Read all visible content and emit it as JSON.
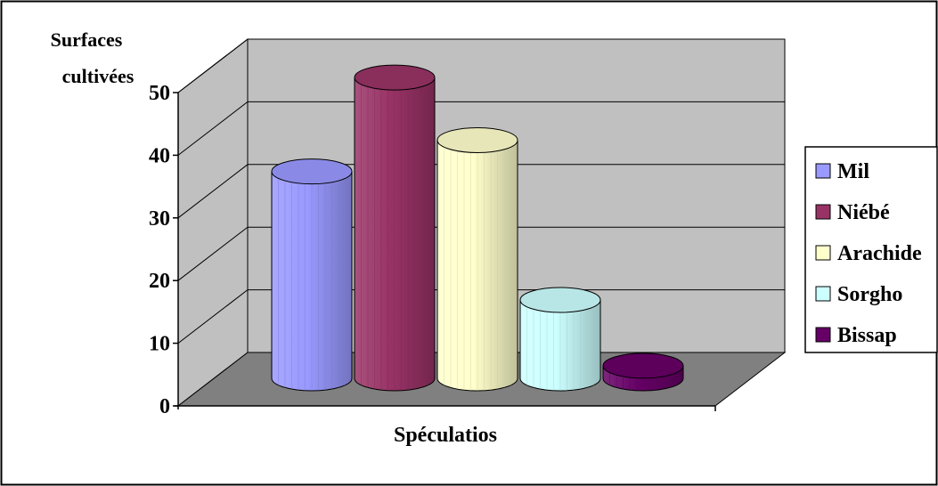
{
  "chart_data": {
    "type": "bar",
    "style": "3d-cylinder",
    "title": "",
    "xlabel": "Spéculatios",
    "ylabel": "Surfaces cultivées",
    "ylabel_lines": [
      "Surfaces",
      "cultivées"
    ],
    "ylim": [
      0,
      50
    ],
    "yticks": [
      "0",
      "10",
      "20",
      "30",
      "40",
      "50"
    ],
    "grid": true,
    "legend_position": "right",
    "series": [
      {
        "name": "Mil",
        "value": 33,
        "color": "#9999ff"
      },
      {
        "name": "Niébé",
        "value": 48,
        "color": "#993366"
      },
      {
        "name": "Arachide",
        "value": 38,
        "color": "#ffffcc"
      },
      {
        "name": "Sorgho",
        "value": 12.5,
        "color": "#ccffff"
      },
      {
        "name": "Bissap",
        "value": 2,
        "color": "#660066"
      }
    ],
    "colors": {
      "back_wall": "#c0c0c0",
      "side_wall": "#c0c0c0",
      "floor": "#808080"
    }
  }
}
